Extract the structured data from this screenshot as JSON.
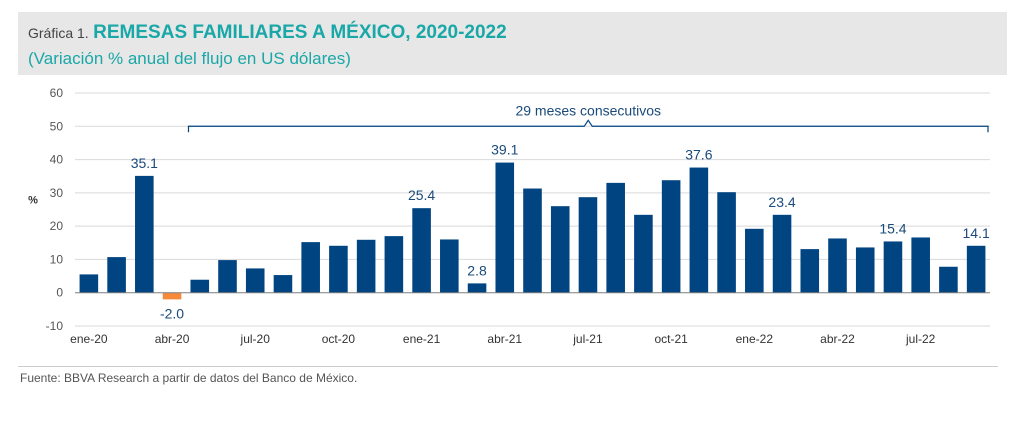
{
  "header": {
    "prefix": "Gráfica 1.",
    "title": "REMESAS FAMILIARES A MÉXICO, 2020-2022",
    "subtitle": "(Variación % anual del flujo en US dólares)"
  },
  "chart_data": {
    "type": "bar",
    "ylabel": "%",
    "ylim": [
      -10,
      60
    ],
    "yticks": [
      -10,
      0,
      10,
      20,
      30,
      40,
      50,
      60
    ],
    "grid": true,
    "categories": [
      "ene-20",
      "feb-20",
      "mar-20",
      "abr-20",
      "may-20",
      "jun-20",
      "jul-20",
      "ago-20",
      "sep-20",
      "oct-20",
      "nov-20",
      "dic-20",
      "ene-21",
      "feb-21",
      "mar-21",
      "abr-21",
      "may-21",
      "jun-21",
      "jul-21",
      "ago-21",
      "sep-21",
      "oct-21",
      "nov-21",
      "dic-21",
      "ene-22",
      "feb-22",
      "mar-22",
      "abr-22",
      "may-22",
      "jun-22",
      "jul-22",
      "ago-22",
      "sep-22"
    ],
    "values": [
      5.5,
      10.7,
      35.1,
      -2.0,
      3.9,
      9.8,
      7.3,
      5.3,
      15.2,
      14.1,
      15.9,
      17.0,
      25.4,
      16.0,
      2.8,
      39.1,
      31.3,
      26.0,
      28.7,
      33.0,
      23.4,
      33.8,
      37.6,
      30.2,
      19.2,
      23.4,
      13.1,
      16.3,
      13.6,
      15.4,
      16.6,
      7.8,
      14.1
    ],
    "xtick_labels": [
      {
        "index": 0,
        "label": "ene-20"
      },
      {
        "index": 3,
        "label": "abr-20"
      },
      {
        "index": 6,
        "label": "jul-20"
      },
      {
        "index": 9,
        "label": "oct-20"
      },
      {
        "index": 12,
        "label": "ene-21"
      },
      {
        "index": 15,
        "label": "abr-21"
      },
      {
        "index": 18,
        "label": "jul-21"
      },
      {
        "index": 21,
        "label": "oct-21"
      },
      {
        "index": 24,
        "label": "ene-22"
      },
      {
        "index": 27,
        "label": "abr-22"
      },
      {
        "index": 30,
        "label": "jul-22"
      }
    ],
    "data_labels": [
      {
        "index": 2,
        "label": "35.1"
      },
      {
        "index": 3,
        "label": "-2.0"
      },
      {
        "index": 12,
        "label": "25.4"
      },
      {
        "index": 14,
        "label": "2.8"
      },
      {
        "index": 15,
        "label": "39.1"
      },
      {
        "index": 22,
        "label": "37.6"
      },
      {
        "index": 25,
        "label": "23.4"
      },
      {
        "index": 29,
        "label": "15.4"
      },
      {
        "index": 32,
        "label": "14.1"
      }
    ],
    "annotation": {
      "text": "29 meses consecutivos",
      "start_index": 4,
      "end_index": 32
    },
    "colors": {
      "positive": "#004481",
      "negative": "#f7893b",
      "text": "#1a4a7a",
      "grid": "#d9d9d9",
      "axis": "#7f7f7f"
    }
  },
  "footer": {
    "source": "Fuente: BBVA Research a partir de datos del Banco de México."
  }
}
